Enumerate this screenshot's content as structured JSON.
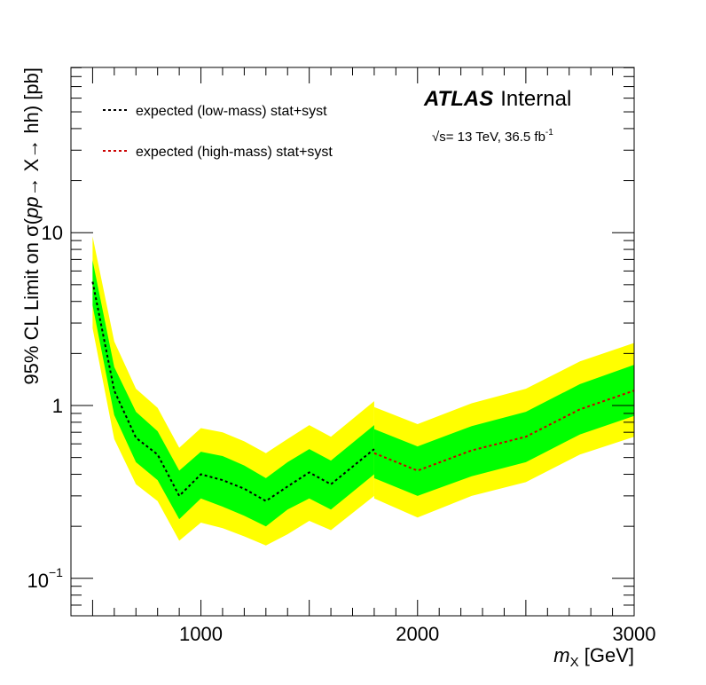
{
  "chart_data": {
    "type": "line",
    "xlabel_var": "m",
    "xlabel_sub": "X",
    "xlabel_unit": " [GeV]",
    "ylabel_pre": "95% CL Limit on σ(",
    "ylabel_italic": "pp",
    "ylabel_post": "→ X→ hh) [pb]",
    "xlim": [
      400,
      3000
    ],
    "ylim": [
      0.06,
      80
    ],
    "yscale": "log",
    "x_ticks": [
      1000,
      2000,
      3000
    ],
    "x_tick_labels": [
      "1000",
      "2000",
      "3000"
    ],
    "y_tick_labels": {
      "decade_10": "10",
      "decade_1": "1",
      "decade_01_base": "10",
      "decade_01_exp": "−1"
    },
    "atlas_label": {
      "bold": "ATLAS",
      "normal": "Internal"
    },
    "energy_label": {
      "sqrt": "√s",
      "text": "= 13 TeV, 36.5 fb",
      "exp": "-1"
    },
    "legend": [
      {
        "name": "expected (low-mass) stat+syst",
        "color": "#000000"
      },
      {
        "name": "expected (high-mass) stat+syst",
        "color": "#cc0000"
      }
    ],
    "band_colors": {
      "two_sigma": "#ffff00",
      "one_sigma": "#00ff00"
    },
    "grid": false,
    "series": [
      {
        "name": "expected (low-mass) stat+syst",
        "x": [
          500,
          600,
          700,
          800,
          900,
          1000,
          1100,
          1200,
          1300,
          1400,
          1500,
          1600,
          1800
        ],
        "y": [
          5.2,
          1.22,
          0.65,
          0.52,
          0.3,
          0.4,
          0.37,
          0.33,
          0.28,
          0.34,
          0.41,
          0.35,
          0.56
        ],
        "up1": [
          6.9,
          1.67,
          0.92,
          0.71,
          0.42,
          0.54,
          0.51,
          0.45,
          0.38,
          0.47,
          0.56,
          0.48,
          0.77
        ],
        "dn1": [
          3.8,
          0.88,
          0.47,
          0.37,
          0.22,
          0.29,
          0.26,
          0.23,
          0.2,
          0.25,
          0.29,
          0.25,
          0.4
        ],
        "up2": [
          9.5,
          2.35,
          1.25,
          0.97,
          0.57,
          0.74,
          0.7,
          0.62,
          0.53,
          0.64,
          0.77,
          0.66,
          1.06
        ],
        "dn2": [
          2.8,
          0.64,
          0.35,
          0.28,
          0.165,
          0.21,
          0.195,
          0.175,
          0.155,
          0.18,
          0.215,
          0.19,
          0.3
        ]
      },
      {
        "name": "expected (high-mass) stat+syst",
        "x": [
          1800,
          2000,
          2250,
          2500,
          2750,
          3000
        ],
        "y": [
          0.53,
          0.42,
          0.55,
          0.66,
          0.95,
          1.22
        ],
        "up1": [
          0.73,
          0.58,
          0.76,
          0.92,
          1.33,
          1.72
        ],
        "dn1": [
          0.38,
          0.3,
          0.39,
          0.47,
          0.68,
          0.87
        ],
        "up2": [
          0.98,
          0.78,
          1.03,
          1.25,
          1.8,
          2.3
        ],
        "dn2": [
          0.29,
          0.225,
          0.3,
          0.36,
          0.52,
          0.66
        ]
      }
    ]
  }
}
